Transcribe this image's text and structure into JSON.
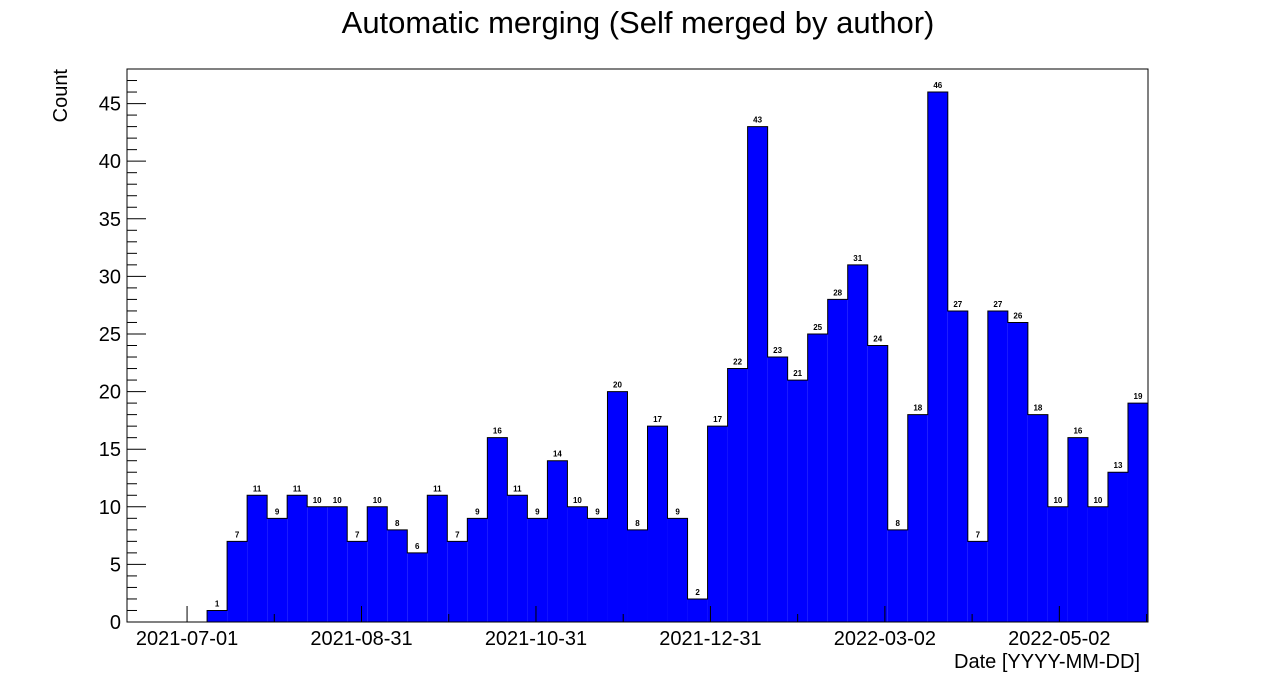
{
  "chart_data": {
    "type": "bar",
    "title": "Automatic merging (Self merged by author)",
    "xlabel": "Date [YYYY-MM-DD]",
    "ylabel": "Count",
    "ylim": [
      0,
      48
    ],
    "bin_width_days": 7,
    "first_bin_start": "2021-06-10",
    "x_ticks": [
      "2021-07-01",
      "2021-08-31",
      "2021-10-31",
      "2021-12-31",
      "2022-03-02",
      "2022-05-02"
    ],
    "y_ticks": [
      0,
      5,
      10,
      15,
      20,
      25,
      30,
      35,
      40,
      45
    ],
    "values": [
      0,
      0,
      0,
      0,
      1,
      7,
      11,
      9,
      11,
      10,
      10,
      7,
      10,
      8,
      6,
      11,
      7,
      9,
      16,
      11,
      9,
      14,
      10,
      9,
      20,
      8,
      17,
      9,
      2,
      17,
      22,
      43,
      23,
      21,
      25,
      28,
      31,
      24,
      8,
      18,
      46,
      27,
      7,
      27,
      26,
      18,
      10,
      16,
      10,
      13,
      19
    ],
    "bar_labels": [
      "",
      "",
      "",
      "",
      "1",
      "7",
      "11",
      "9",
      "11",
      "10",
      "10",
      "7",
      "10",
      "8",
      "6",
      "11",
      "7",
      "9",
      "16",
      "11",
      "9",
      "14",
      "10",
      "9",
      "20",
      "8",
      "17",
      "9",
      "2",
      "17",
      "22",
      "43",
      "23",
      "21",
      "25",
      "28",
      "31",
      "24",
      "8",
      "18",
      "46",
      "27",
      "7",
      "27",
      "26",
      "18",
      "10",
      "16",
      "10",
      "13",
      "19"
    ],
    "bar_color": "#0000ff",
    "grid": false,
    "legend": false
  }
}
